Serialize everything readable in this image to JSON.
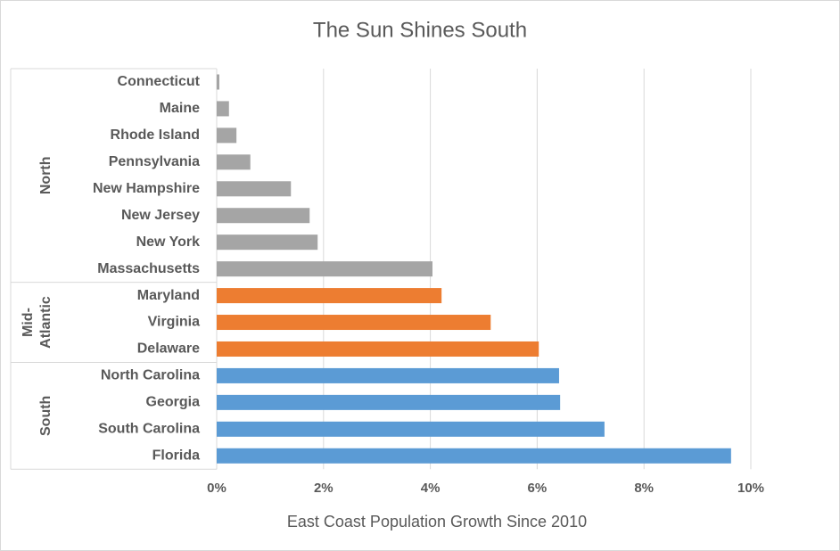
{
  "chart_data": {
    "type": "bar",
    "orientation": "horizontal",
    "title": "The Sun Shines South",
    "x_label": "East Coast Population Growth Since 2010",
    "groups": [
      {
        "name": "North",
        "color": "#a5a5a5",
        "categories": [
          "Connecticut",
          "Maine",
          "Rhode Island",
          "Pennsylvania",
          "New Hampshire",
          "New Jersey",
          "New York",
          "Massachusetts"
        ],
        "values": [
          0.05,
          0.23,
          0.37,
          0.63,
          1.39,
          1.74,
          1.89,
          4.04
        ]
      },
      {
        "name": "Mid-Atlantic",
        "color": "#ed7d31",
        "categories": [
          "Maryland",
          "Virginia",
          "Delaware"
        ],
        "values": [
          4.21,
          5.13,
          6.03
        ]
      },
      {
        "name": "South",
        "color": "#5b9bd5",
        "categories": [
          "North Carolina",
          "Georgia",
          "South Carolina",
          "Florida"
        ],
        "values": [
          6.41,
          6.43,
          7.26,
          9.63
        ]
      }
    ],
    "xlim": [
      0,
      10
    ],
    "xticks": [
      {
        "value": 0,
        "label": "0%"
      },
      {
        "value": 2,
        "label": "2%"
      },
      {
        "value": 4,
        "label": "4%"
      },
      {
        "value": 6,
        "label": "6%"
      },
      {
        "value": 8,
        "label": "8%"
      },
      {
        "value": 10,
        "label": "10%"
      }
    ],
    "grid": true
  }
}
